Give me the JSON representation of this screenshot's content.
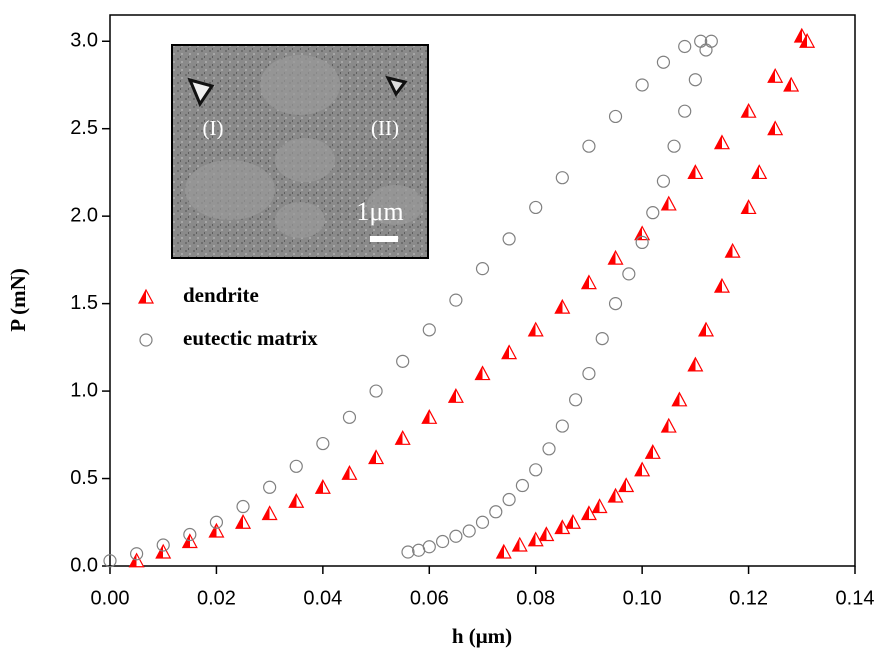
{
  "chart_data": {
    "type": "scatter",
    "xlabel": "h (μm)",
    "ylabel": "P (mN)",
    "xlim": [
      0,
      0.14
    ],
    "ylim": [
      0,
      3.15
    ],
    "xticks": [
      {
        "value": 0,
        "label": "0.00"
      },
      {
        "value": 0.02,
        "label": "0.02"
      },
      {
        "value": 0.04,
        "label": "0.04"
      },
      {
        "value": 0.06,
        "label": "0.06"
      },
      {
        "value": 0.08,
        "label": "0.08"
      },
      {
        "value": 0.1,
        "label": "0.10"
      },
      {
        "value": 0.12,
        "label": "0.12"
      },
      {
        "value": 0.14,
        "label": "0.14"
      }
    ],
    "yticks": [
      {
        "value": 0,
        "label": "0.0"
      },
      0.5,
      {
        "value": 1,
        "label": "1.0"
      },
      1.5,
      {
        "value": 2,
        "label": "2.0"
      },
      2.5,
      {
        "value": 3,
        "label": "3.0"
      }
    ],
    "legend": "center left",
    "annotations": [
      "(I)",
      "(II)",
      "1μm"
    ],
    "series": [
      {
        "name": "dendrite",
        "color": "#ff0000",
        "marker": "half-triangle",
        "x": [
          0.005,
          0.01,
          0.015,
          0.02,
          0.025,
          0.03,
          0.035,
          0.04,
          0.045,
          0.05,
          0.055,
          0.06,
          0.065,
          0.07,
          0.075,
          0.08,
          0.085,
          0.09,
          0.095,
          0.1,
          0.105,
          0.11,
          0.115,
          0.12,
          0.125,
          0.13,
          0.131,
          0.128,
          0.125,
          0.122,
          0.12,
          0.117,
          0.115,
          0.112,
          0.11,
          0.107,
          0.105,
          0.102,
          0.1,
          0.097,
          0.095,
          0.092,
          0.09,
          0.087,
          0.085,
          0.082,
          0.08,
          0.077,
          0.074
        ],
        "values": [
          0.03,
          0.08,
          0.14,
          0.2,
          0.25,
          0.3,
          0.37,
          0.45,
          0.53,
          0.62,
          0.73,
          0.85,
          0.97,
          1.1,
          1.22,
          1.35,
          1.48,
          1.62,
          1.76,
          1.9,
          2.07,
          2.25,
          2.42,
          2.6,
          2.8,
          3.03,
          3.0,
          2.75,
          2.5,
          2.25,
          2.05,
          1.8,
          1.6,
          1.35,
          1.15,
          0.95,
          0.8,
          0.65,
          0.55,
          0.46,
          0.4,
          0.34,
          0.3,
          0.25,
          0.22,
          0.18,
          0.15,
          0.12,
          0.08
        ]
      },
      {
        "name": "eutectic matrix",
        "color": "#808080",
        "marker": "open-circle",
        "x": [
          0,
          0.005,
          0.01,
          0.015,
          0.02,
          0.025,
          0.03,
          0.035,
          0.04,
          0.045,
          0.05,
          0.055,
          0.06,
          0.065,
          0.07,
          0.075,
          0.08,
          0.085,
          0.09,
          0.095,
          0.1,
          0.104,
          0.108,
          0.111,
          0.113,
          0.112,
          0.11,
          0.108,
          0.106,
          0.104,
          0.102,
          0.1,
          0.0975,
          0.095,
          0.0925,
          0.09,
          0.0875,
          0.085,
          0.0825,
          0.08,
          0.0775,
          0.075,
          0.0725,
          0.07,
          0.0675,
          0.065,
          0.0625,
          0.06,
          0.058,
          0.056
        ],
        "values": [
          0.03,
          0.07,
          0.12,
          0.18,
          0.25,
          0.34,
          0.45,
          0.57,
          0.7,
          0.85,
          1.0,
          1.17,
          1.35,
          1.52,
          1.7,
          1.87,
          2.05,
          2.22,
          2.4,
          2.57,
          2.75,
          2.88,
          2.97,
          3.0,
          3.0,
          2.95,
          2.78,
          2.6,
          2.4,
          2.2,
          2.02,
          1.85,
          1.67,
          1.5,
          1.3,
          1.1,
          0.95,
          0.8,
          0.67,
          0.55,
          0.46,
          0.38,
          0.31,
          0.25,
          0.2,
          0.17,
          0.14,
          0.11,
          0.09,
          0.08
        ]
      }
    ]
  }
}
